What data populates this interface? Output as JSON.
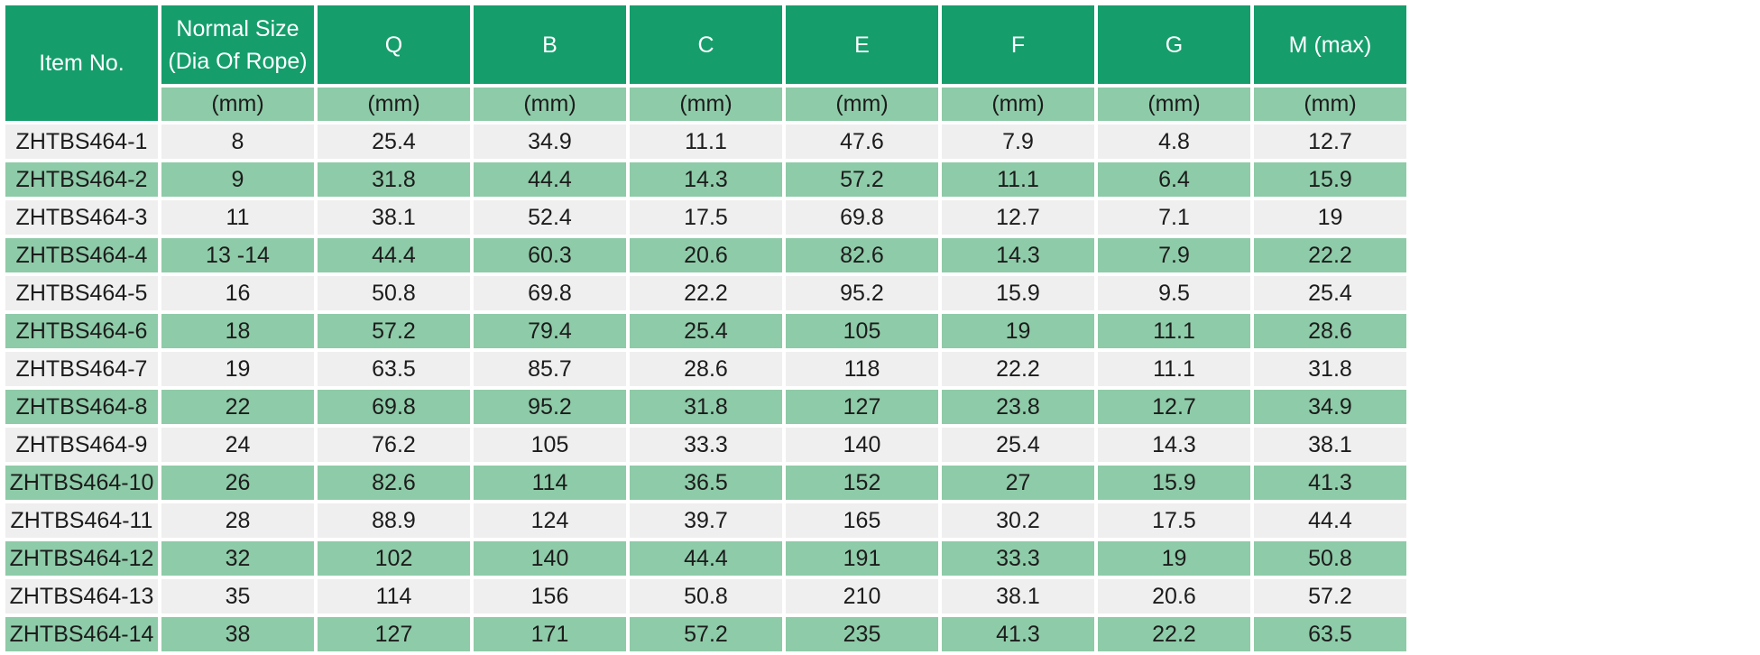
{
  "table": {
    "headers": [
      "Item No.",
      "Normal Size\n(Dia Of Rope)",
      "Q",
      "B",
      "C",
      "E",
      "F",
      "G",
      "M (max)"
    ],
    "units": [
      "(mm)",
      "(mm)",
      "(mm)",
      "(mm)",
      "(mm)",
      "(mm)",
      "(mm)",
      "(mm)"
    ],
    "rows": [
      [
        "ZHTBS464-1",
        "8",
        "25.4",
        "34.9",
        "11.1",
        "47.6",
        "7.9",
        "4.8",
        "12.7"
      ],
      [
        "ZHTBS464-2",
        "9",
        "31.8",
        "44.4",
        "14.3",
        "57.2",
        "11.1",
        "6.4",
        "15.9"
      ],
      [
        "ZHTBS464-3",
        "11",
        "38.1",
        "52.4",
        "17.5",
        "69.8",
        "12.7",
        "7.1",
        "19"
      ],
      [
        "ZHTBS464-4",
        "13 -14",
        "44.4",
        "60.3",
        "20.6",
        "82.6",
        "14.3",
        "7.9",
        "22.2"
      ],
      [
        "ZHTBS464-5",
        "16",
        "50.8",
        "69.8",
        "22.2",
        "95.2",
        "15.9",
        "9.5",
        "25.4"
      ],
      [
        "ZHTBS464-6",
        "18",
        "57.2",
        "79.4",
        "25.4",
        "105",
        "19",
        "11.1",
        "28.6"
      ],
      [
        "ZHTBS464-7",
        "19",
        "63.5",
        "85.7",
        "28.6",
        "118",
        "22.2",
        "11.1",
        "31.8"
      ],
      [
        "ZHTBS464-8",
        "22",
        "69.8",
        "95.2",
        "31.8",
        "127",
        "23.8",
        "12.7",
        "34.9"
      ],
      [
        "ZHTBS464-9",
        "24",
        "76.2",
        "105",
        "33.3",
        "140",
        "25.4",
        "14.3",
        "38.1"
      ],
      [
        "ZHTBS464-10",
        "26",
        "82.6",
        "114",
        "36.5",
        "152",
        "27",
        "15.9",
        "41.3"
      ],
      [
        "ZHTBS464-11",
        "28",
        "88.9",
        "124",
        "39.7",
        "165",
        "30.2",
        "17.5",
        "44.4"
      ],
      [
        "ZHTBS464-12",
        "32",
        "102",
        "140",
        "44.4",
        "191",
        "33.3",
        "19",
        "50.8"
      ],
      [
        "ZHTBS464-13",
        "35",
        "114",
        "156",
        "50.8",
        "210",
        "38.1",
        "20.6",
        "57.2"
      ],
      [
        "ZHTBS464-14",
        "38",
        "127",
        "171",
        "57.2",
        "235",
        "41.3",
        "22.2",
        "63.5"
      ]
    ]
  },
  "colors": {
    "header_bg": "#159e6c",
    "unit_bg": "#8ecba8",
    "row_alt_bg": "#8ecba8",
    "row_bg": "#efefef",
    "header_text": "#ffffff",
    "body_text": "#1c1c1c"
  }
}
